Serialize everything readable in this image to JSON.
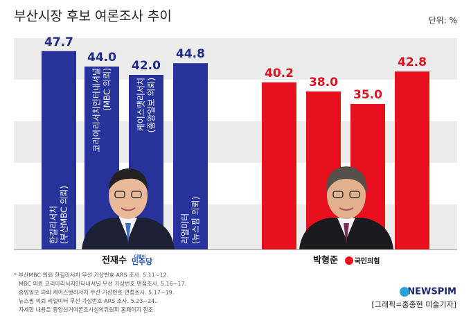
{
  "chart_data": {
    "type": "bar",
    "title": "부산시장 후보 여론조사 추이",
    "unit_label": "단위: %",
    "series": [
      {
        "name": "전재수",
        "party": "민주당",
        "party_prefix": "더불어",
        "color": "#27339b",
        "values": [
          47.7,
          44.0,
          42.0,
          44.8
        ],
        "value_labels": [
          "47.7",
          "44.0",
          "42.0",
          "44.8"
        ],
        "bar_labels": [
          [
            "한길리서치",
            "(부산MBC 의뢰)"
          ],
          [
            "코리아리서치인터내셔널",
            "(MBC 의뢰)"
          ],
          [
            "케이스탯리서치",
            "(중앙일보 의뢰)"
          ],
          [
            "리얼미터",
            "(뉴스핌 의뢰)"
          ]
        ]
      },
      {
        "name": "박형준",
        "party": "국민의힘",
        "color": "#e8101e",
        "values": [
          40.2,
          38.0,
          35.0,
          42.8
        ],
        "value_labels": [
          "40.2",
          "38.0",
          "35.0",
          "42.8"
        ]
      }
    ],
    "footnotes": [
      "* 부산MBC 의뢰 한길리서치 무선 가상번호 ARS 조사. 5.11~12.",
      "MBC 의뢰 코리아리서치인터내셔널 무선 가상번호 면접조사. 5.16~17.",
      "중앙일보 의뢰 케이스탯리서치 무선 가상번호 면접조사. 5.17~19.",
      "뉴스핌 의뢰 리얼미터 무선 가상번호 ARS 조사. 5.23~24.",
      "자세한 내용은 중앙선거여론조사심의위원회 홈페이지 참조."
    ],
    "brand": "NEWSPIM",
    "credit": "[그래픽=홍종현 미술기자]"
  }
}
